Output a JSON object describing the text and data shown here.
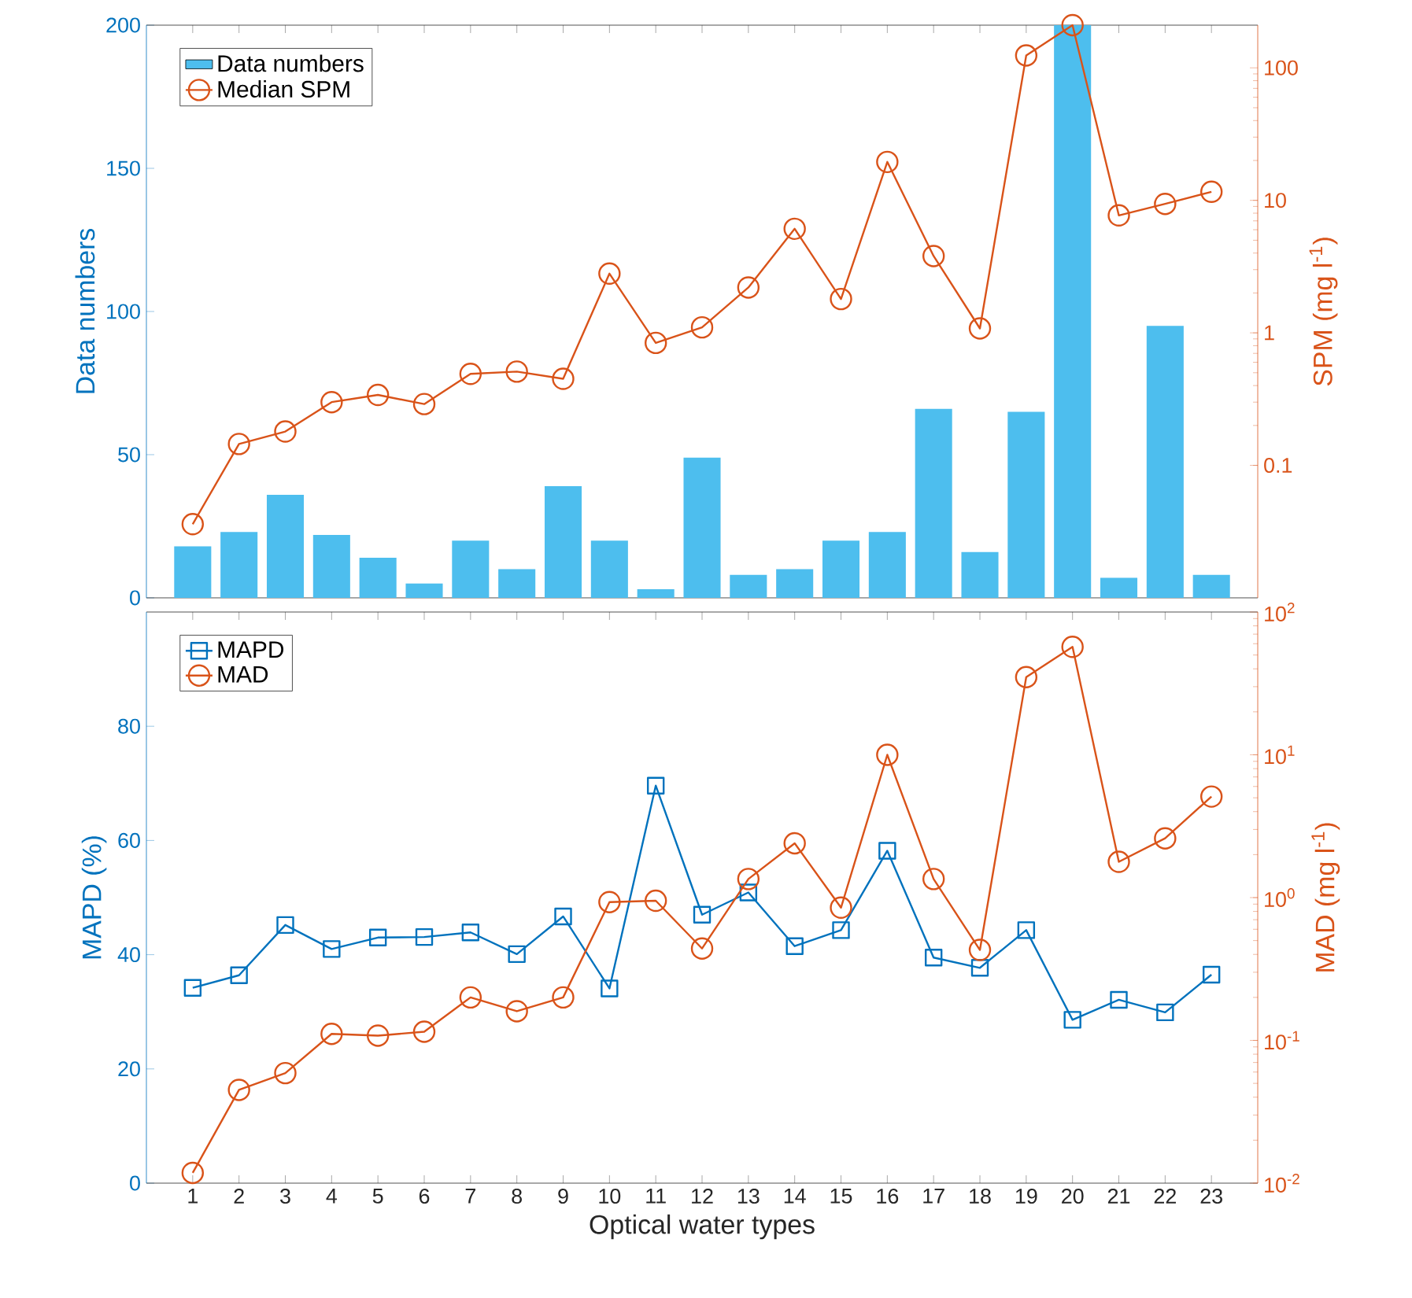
{
  "chart_data": [
    {
      "type": "bar",
      "categories": [
        "1",
        "2",
        "3",
        "4",
        "5",
        "6",
        "7",
        "8",
        "9",
        "10",
        "11",
        "12",
        "13",
        "14",
        "15",
        "16",
        "17",
        "18",
        "19",
        "20",
        "21",
        "22",
        "23"
      ],
      "ylabel": "Data numbers",
      "y2label": "SPM (mg l$^{-1}$)",
      "ylim": [
        0,
        200
      ],
      "yticks": [
        0,
        50,
        100,
        150,
        200
      ],
      "y2lim": [
        0.01,
        210
      ],
      "y2ticks": [
        0.1,
        1,
        10,
        100
      ],
      "log": "y2",
      "legend": "top left",
      "tick_labels": "y",
      "series": [
        {
          "name": "Data numbers",
          "color": "#4dbeee",
          "values": [
            18,
            23,
            36,
            22,
            14,
            5,
            20,
            10,
            39,
            20,
            3,
            49,
            8,
            10,
            20,
            23,
            66,
            16,
            65,
            200,
            7,
            95,
            8
          ]
        },
        {
          "name": "Median SPM",
          "type": "line",
          "axis": "y2",
          "marker": "circle",
          "color": "#d95319",
          "values": [
            0.036,
            0.145,
            0.18,
            0.3,
            0.34,
            0.29,
            0.49,
            0.51,
            0.45,
            2.8,
            0.84,
            1.1,
            2.2,
            6.1,
            1.8,
            19.5,
            3.8,
            1.08,
            124,
            210,
            7.7,
            9.4,
            11.6
          ]
        }
      ]
    },
    {
      "type": "line",
      "categories": [
        "1",
        "2",
        "3",
        "4",
        "5",
        "6",
        "7",
        "8",
        "9",
        "10",
        "11",
        "12",
        "13",
        "14",
        "15",
        "16",
        "17",
        "18",
        "19",
        "20",
        "21",
        "22",
        "23"
      ],
      "xlabel": "Optical water types",
      "ylabel": "MAPD (%)",
      "y2label": "MAD (mg l$^{-1}$)",
      "ylim": [
        0,
        100
      ],
      "yticks": [
        0,
        20,
        40,
        60,
        80
      ],
      "y2lim": [
        0.01,
        100
      ],
      "y2ticks": [
        {
          "value": 0.01,
          "label": "10$^{-2}$"
        },
        {
          "value": 0.1,
          "label": "10$^{-1}$"
        },
        {
          "value": 1,
          "label": "10$^{0}$"
        },
        {
          "value": 10,
          "label": "10$^{1}$"
        },
        {
          "value": 100,
          "label": "10$^{2}$"
        }
      ],
      "log": "y2",
      "legend": "top left",
      "series": [
        {
          "name": "MAPD",
          "marker": "square",
          "color": "#0072bd",
          "values": [
            34.2,
            36.4,
            45.2,
            41,
            43,
            43.1,
            43.9,
            40.1,
            46.7,
            34.1,
            69.6,
            47,
            50.9,
            41.5,
            44.3,
            58.2,
            39.5,
            37.7,
            44.3,
            28.6,
            32.1,
            29.9,
            36.5
          ]
        },
        {
          "name": "MAD",
          "axis": "y2",
          "marker": "circle",
          "color": "#d95319",
          "values": [
            0.0118,
            0.045,
            0.059,
            0.111,
            0.108,
            0.115,
            0.2,
            0.16,
            0.2,
            0.93,
            0.95,
            0.44,
            1.35,
            2.4,
            0.85,
            10,
            1.35,
            0.43,
            35,
            57,
            1.78,
            2.6,
            5.1
          ]
        }
      ]
    }
  ]
}
